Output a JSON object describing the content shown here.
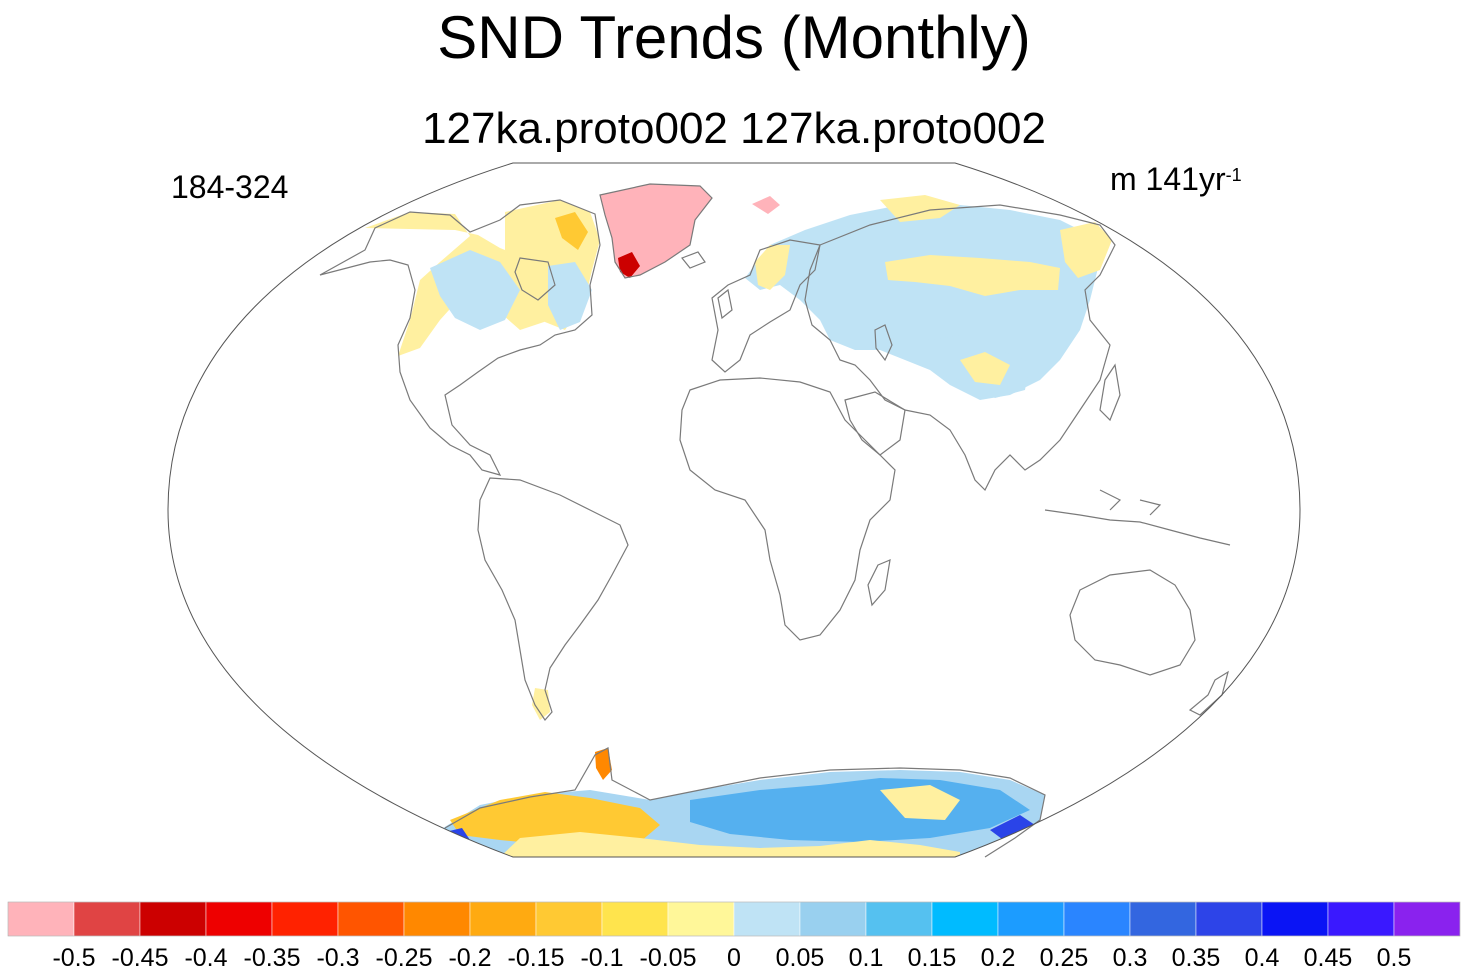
{
  "title": "SND Trends (Monthly)",
  "subtitle": "127ka.proto002  127ka.proto002",
  "left_label": "184-324",
  "right_label": {
    "prefix": "m 141yr",
    "exponent": "-1"
  },
  "colorbar": {
    "colors": [
      "#ffb3ba",
      "#e04444",
      "#cc0000",
      "#ee0000",
      "#ff2200",
      "#ff5500",
      "#ff8800",
      "#ffaa11",
      "#ffc933",
      "#ffe44d",
      "#fff799",
      "#bfe3f5",
      "#99d0ef",
      "#55c1f0",
      "#00bbff",
      "#1c9cff",
      "#2a85ff",
      "#3366e0",
      "#2d44e8",
      "#0a14f5",
      "#3a18ff",
      "#8a22ee"
    ],
    "tick_labels": [
      "-0.5",
      "-0.45",
      "-0.4",
      "-0.35",
      "-0.3",
      "-0.25",
      "-0.2",
      "-0.15",
      "-0.1",
      "-0.05",
      "0",
      "0.05",
      "0.1",
      "0.15",
      "0.2",
      "0.25",
      "0.3",
      "0.35",
      "0.4",
      "0.45",
      "0.5"
    ]
  }
}
